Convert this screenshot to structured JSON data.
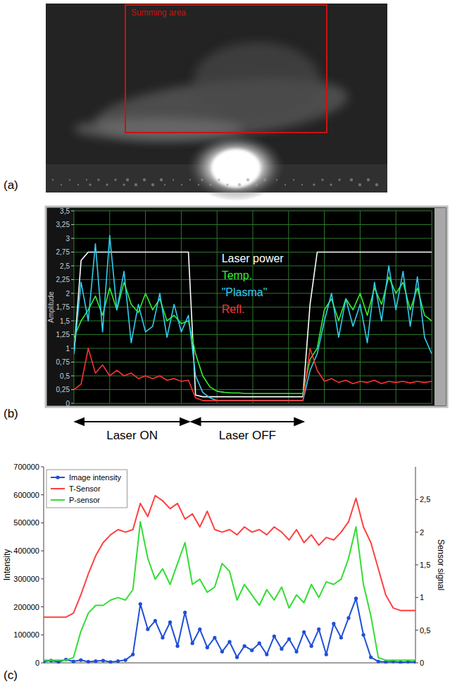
{
  "chart_data": [
    {
      "type": "image",
      "panel_label": "(a)",
      "annotation": "Summing area"
    },
    {
      "type": "line",
      "panel_label": "(b)",
      "y_label": "Amplitude",
      "x": [
        0,
        2,
        4,
        6,
        8,
        10,
        12,
        14,
        16,
        18,
        20,
        22,
        24,
        26,
        28,
        30,
        32,
        34,
        36,
        38,
        40,
        42,
        44,
        46,
        48,
        50,
        52,
        54,
        56,
        58,
        60,
        62,
        64,
        66,
        68,
        70,
        72,
        74,
        76,
        78,
        80,
        82,
        84,
        86,
        88,
        90,
        92,
        94,
        96,
        98,
        100
      ],
      "xlim": [
        0,
        100
      ],
      "ylim": [
        0,
        3.5
      ],
      "xticks": [
        0,
        10,
        20,
        30,
        40,
        50,
        60,
        70,
        80,
        90,
        100
      ],
      "yticks": [
        0,
        {
          "value": 0.25,
          "label": "0,25"
        },
        {
          "value": 0.5,
          "label": "0,5"
        },
        {
          "value": 0.75,
          "label": "0,75"
        },
        1,
        {
          "value": 1.25,
          "label": "1,25"
        },
        {
          "value": 1.5,
          "label": "1,5"
        },
        {
          "value": 1.75,
          "label": "1,75"
        },
        2,
        {
          "value": 2.25,
          "label": "2,25"
        },
        {
          "value": 2.5,
          "label": "2,5"
        },
        {
          "value": 2.75,
          "label": "2,75"
        },
        3,
        {
          "value": 3.25,
          "label": "3,25"
        },
        {
          "value": 3.5,
          "label": "3,5"
        }
      ],
      "grid": true,
      "legend": "upper center",
      "tick_labels": "y",
      "series": [
        {
          "name": "Laser power",
          "color": "#ffffff",
          "values": [
            0.9,
            2.6,
            2.75,
            2.75,
            2.75,
            2.75,
            2.75,
            2.75,
            2.75,
            2.75,
            2.75,
            2.75,
            2.75,
            2.75,
            2.75,
            2.75,
            2.75,
            0.15,
            0.12,
            0.12,
            0.12,
            0.12,
            0.12,
            0.12,
            0.12,
            0.12,
            0.12,
            0.12,
            0.12,
            0.12,
            0.12,
            0.12,
            0.12,
            1.8,
            2.75,
            2.75,
            2.75,
            2.75,
            2.75,
            2.75,
            2.75,
            2.75,
            2.75,
            2.75,
            2.75,
            2.75,
            2.75,
            2.75,
            2.75,
            2.75,
            2.75
          ]
        },
        {
          "name": "Temp.",
          "color": "#33ee33",
          "values": [
            1.2,
            1.5,
            1.7,
            1.95,
            1.6,
            2.1,
            1.7,
            2.2,
            1.8,
            1.65,
            2.0,
            1.7,
            1.9,
            1.5,
            1.6,
            1.45,
            1.5,
            0.9,
            0.5,
            0.3,
            0.22,
            0.2,
            0.19,
            0.19,
            0.18,
            0.18,
            0.18,
            0.18,
            0.18,
            0.18,
            0.18,
            0.18,
            0.18,
            0.8,
            1.0,
            1.7,
            1.9,
            1.5,
            1.9,
            1.7,
            2.0,
            1.6,
            2.1,
            1.8,
            2.3,
            2.0,
            2.2,
            1.7,
            2.1,
            1.6,
            1.5
          ]
        },
        {
          "name": "\"Plasma\"",
          "color": "#33ccee",
          "values": [
            0.9,
            2.2,
            1.5,
            2.9,
            1.3,
            3.05,
            1.7,
            2.4,
            1.1,
            1.8,
            1.3,
            1.4,
            2.0,
            1.2,
            1.8,
            1.3,
            1.6,
            0.5,
            0.2,
            0.1,
            0.05,
            0.05,
            0.05,
            0.05,
            0.05,
            0.05,
            0.05,
            0.05,
            0.05,
            0.05,
            0.05,
            0.05,
            0.05,
            0.6,
            0.9,
            1.5,
            2.0,
            1.2,
            1.9,
            1.4,
            1.8,
            1.1,
            2.2,
            1.5,
            2.5,
            1.7,
            2.4,
            1.4,
            2.3,
            1.2,
            0.9
          ]
        },
        {
          "name": "Refl.",
          "color": "#ff3333",
          "values": [
            0.25,
            0.35,
            1.0,
            0.55,
            0.7,
            0.5,
            0.6,
            0.5,
            0.55,
            0.45,
            0.5,
            0.45,
            0.5,
            0.42,
            0.45,
            0.4,
            0.42,
            0.1,
            0.05,
            0.05,
            0.05,
            0.05,
            0.05,
            0.05,
            0.05,
            0.05,
            0.05,
            0.05,
            0.05,
            0.05,
            0.05,
            0.05,
            0.05,
            1.0,
            0.6,
            0.4,
            0.45,
            0.38,
            0.42,
            0.36,
            0.4,
            0.38,
            0.42,
            0.36,
            0.4,
            0.38,
            0.4,
            0.37,
            0.4,
            0.38,
            0.4
          ]
        }
      ],
      "annotations": [
        {
          "text": "Laser ON",
          "x_range": [
            0,
            32.5
          ]
        },
        {
          "text": "Laser OFF",
          "x_range": [
            32.5,
            64.5
          ]
        }
      ]
    },
    {
      "type": "line",
      "panel_label": "(c)",
      "y_label": "Intensity",
      "y2_label": "Sensor signal",
      "x": [
        0,
        2,
        4,
        6,
        8,
        10,
        12,
        14,
        16,
        18,
        20,
        22,
        24,
        26,
        28,
        30,
        32,
        34,
        36,
        38,
        40,
        42,
        44,
        46,
        48,
        50,
        52,
        54,
        56,
        58,
        60,
        62,
        64,
        66,
        68,
        70,
        72,
        74,
        76,
        78,
        80,
        82,
        84,
        86,
        88,
        90,
        92,
        94,
        96,
        98,
        100
      ],
      "xlim": [
        0,
        100
      ],
      "ylim": [
        0,
        700000
      ],
      "yticks": [
        0,
        100000,
        200000,
        300000,
        400000,
        500000,
        600000,
        700000
      ],
      "y2lim": [
        0,
        3
      ],
      "y2ticks": [
        0,
        {
          "value": 0.5,
          "label": "0,5"
        },
        1,
        {
          "value": 1.5,
          "label": "1,5"
        },
        2,
        {
          "value": 2.5,
          "label": "2,5"
        }
      ],
      "grid": false,
      "legend": "upper left",
      "tick_labels": "y",
      "series": [
        {
          "name": "Image intensity",
          "color": "#1f4fd8",
          "marker": "circle",
          "values": [
            5000,
            8000,
            3000,
            12000,
            5000,
            10000,
            4000,
            6000,
            8000,
            3000,
            6000,
            10000,
            30000,
            210000,
            120000,
            150000,
            90000,
            145000,
            60000,
            180000,
            70000,
            120000,
            55000,
            90000,
            40000,
            75000,
            20000,
            60000,
            45000,
            70000,
            30000,
            95000,
            50000,
            85000,
            40000,
            110000,
            60000,
            120000,
            30000,
            140000,
            90000,
            160000,
            230000,
            100000,
            20000,
            5000,
            3000,
            5000,
            2000,
            4000,
            3000
          ]
        },
        {
          "name": "T-Sensor",
          "color": "#ff4040",
          "axis": "y2",
          "values": [
            0.7,
            0.7,
            0.7,
            0.7,
            0.76,
            1.04,
            1.36,
            1.64,
            1.84,
            1.96,
            2.04,
            2.0,
            2.04,
            2.44,
            2.24,
            2.56,
            2.48,
            2.36,
            2.44,
            2.2,
            2.28,
            2.08,
            2.32,
            2.04,
            2.0,
            2.04,
            1.96,
            2.08,
            2.0,
            2.04,
            1.96,
            2.08,
            2.0,
            1.88,
            2.04,
            1.84,
            1.96,
            1.8,
            1.92,
            1.88,
            2.0,
            2.16,
            2.52,
            2.08,
            1.84,
            1.44,
            1.04,
            0.84,
            0.8,
            0.8,
            0.8
          ]
        },
        {
          "name": "P-sensor",
          "color": "#33dd33",
          "axis": "y2",
          "values": [
            0.04,
            0.04,
            0.04,
            0.04,
            0.08,
            0.48,
            0.76,
            0.88,
            0.88,
            0.96,
            1.0,
            0.96,
            1.12,
            2.16,
            1.6,
            1.28,
            1.44,
            1.2,
            1.52,
            1.84,
            1.2,
            1.28,
            1.08,
            1.16,
            1.52,
            1.4,
            0.96,
            1.2,
            1.04,
            0.88,
            1.12,
            0.96,
            1.16,
            0.84,
            1.04,
            0.92,
            1.2,
            1.0,
            1.24,
            1.2,
            1.28,
            1.6,
            2.08,
            1.2,
            0.72,
            0.08,
            0.04,
            0.04,
            0.04,
            0.04,
            0.04
          ]
        }
      ]
    }
  ]
}
